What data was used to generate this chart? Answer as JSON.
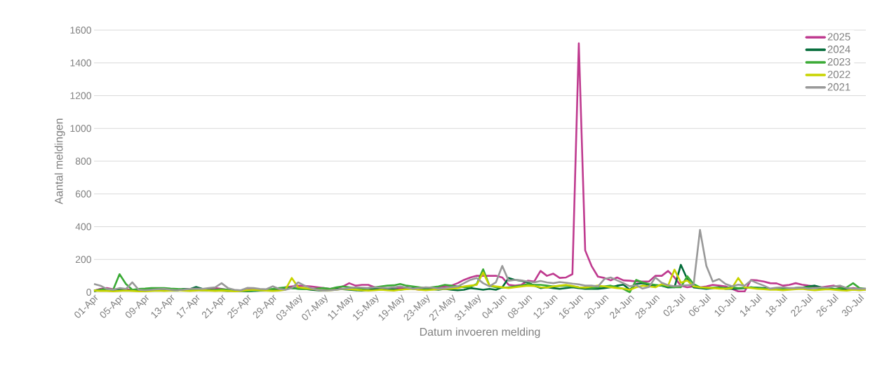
{
  "chart_data": {
    "type": "line",
    "xlabel": "Datum invoeren melding",
    "ylabel": "Aantal meldingen",
    "categories": [
      "01-Apr",
      null,
      null,
      null,
      "05-Apr",
      null,
      null,
      null,
      "09-Apr",
      null,
      null,
      null,
      "13-Apr",
      null,
      null,
      null,
      "17-Apr",
      null,
      null,
      null,
      "21-Apr",
      null,
      null,
      null,
      "25-Apr",
      null,
      null,
      null,
      "29-Apr",
      null,
      null,
      null,
      "03-May",
      null,
      null,
      null,
      "07-May",
      null,
      null,
      null,
      "11-May",
      null,
      null,
      null,
      "15-May",
      null,
      null,
      null,
      "19-May",
      null,
      null,
      null,
      "23-May",
      null,
      null,
      null,
      "27-May",
      null,
      null,
      null,
      "31-May",
      null,
      null,
      null,
      "04-Jun",
      null,
      null,
      null,
      "08-Jun",
      null,
      null,
      null,
      "12-Jun",
      null,
      null,
      null,
      "16-Jun",
      null,
      null,
      null,
      "20-Jun",
      null,
      null,
      null,
      "24-Jun",
      null,
      null,
      null,
      "28-Jun",
      null,
      null,
      null,
      "02-Jul",
      null,
      null,
      null,
      "06-Jul",
      null,
      null,
      null,
      "10-Jul",
      null,
      null,
      null,
      "14-Jul",
      null,
      null,
      null,
      "18-Jul",
      null,
      null,
      null,
      "22-Jul",
      null,
      null,
      null,
      "26-Jul",
      null,
      null,
      null,
      "30-Jul",
      null
    ],
    "series": [
      {
        "name": "2025",
        "color": "#bf3a8f",
        "values": [
          10,
          20,
          25,
          18,
          15,
          20,
          12,
          10,
          15,
          18,
          15,
          12,
          10,
          15,
          18,
          20,
          15,
          12,
          18,
          25,
          20,
          15,
          12,
          10,
          15,
          18,
          15,
          12,
          15,
          20,
          30,
          35,
          40,
          38,
          35,
          30,
          25,
          20,
          25,
          35,
          55,
          40,
          45,
          45,
          30,
          25,
          20,
          30,
          25,
          30,
          20,
          15,
          25,
          20,
          30,
          35,
          40,
          55,
          75,
          90,
          100,
          100,
          100,
          100,
          90,
          45,
          40,
          45,
          70,
          65,
          130,
          100,
          113,
          87,
          90,
          110,
          1520,
          255,
          160,
          95,
          87,
          72,
          90,
          72,
          70,
          65,
          65,
          65,
          100,
          100,
          130,
          90,
          40,
          30,
          35,
          30,
          35,
          45,
          40,
          35,
          20,
          5,
          5,
          75,
          72,
          65,
          55,
          54,
          40,
          45,
          55,
          46,
          40,
          35,
          30,
          35,
          40,
          30,
          20,
          25,
          20,
          15
        ]
      },
      {
        "name": "2024",
        "color": "#006a37",
        "values": [
          5,
          15,
          20,
          10,
          15,
          10,
          12,
          15,
          18,
          20,
          18,
          15,
          12,
          10,
          20,
          18,
          32,
          20,
          15,
          12,
          10,
          8,
          10,
          null,
          5,
          8,
          10,
          12,
          15,
          18,
          20,
          25,
          22,
          20,
          15,
          12,
          10,
          15,
          20,
          18,
          15,
          12,
          10,
          15,
          20,
          25,
          20,
          18,
          15,
          20,
          25,
          20,
          15,
          18,
          15,
          20,
          15,
          12,
          15,
          25,
          20,
          15,
          20,
          15,
          30,
          87,
          75,
          70,
          60,
          40,
          25,
          30,
          25,
          20,
          25,
          30,
          25,
          20,
          22,
          20,
          25,
          30,
          40,
          46,
          15,
          50,
          55,
          45,
          40,
          40,
          29,
          30,
          167,
          80,
          29,
          25,
          20,
          25,
          30,
          20,
          20,
          22,
          25,
          30,
          28,
          25,
          20,
          18,
          15,
          20,
          25,
          28,
          35,
          40,
          30,
          25,
          20,
          15,
          18,
          20,
          15,
          null
        ]
      },
      {
        "name": "2023",
        "color": "#3aaa35",
        "values": [
          10,
          15,
          20,
          15,
          110,
          50,
          15,
          20,
          22,
          25,
          25,
          25,
          22,
          20,
          18,
          15,
          15,
          12,
          10,
          15,
          18,
          15,
          12,
          10,
          8,
          10,
          12,
          15,
          20,
          25,
          30,
          25,
          20,
          18,
          20,
          22,
          25,
          20,
          30,
          35,
          30,
          25,
          20,
          25,
          30,
          35,
          40,
          42,
          50,
          40,
          35,
          30,
          25,
          30,
          35,
          45,
          40,
          35,
          30,
          32,
          50,
          140,
          40,
          30,
          28,
          30,
          35,
          40,
          50,
          45,
          45,
          40,
          35,
          38,
          40,
          35,
          30,
          28,
          25,
          30,
          35,
          40,
          30,
          20,
          0,
          75,
          60,
          50,
          45,
          40,
          35,
          30,
          30,
          98,
          50,
          30,
          25,
          28,
          30,
          25,
          30,
          25,
          28,
          30,
          25,
          22,
          20,
          18,
          20,
          22,
          25,
          28,
          30,
          25,
          22,
          20,
          18,
          25,
          30,
          55,
          25,
          20
        ]
      },
      {
        "name": "2022",
        "color": "#c8d400",
        "values": [
          10,
          8,
          8,
          5,
          8,
          10,
          8,
          5,
          6,
          8,
          10,
          8,
          10,
          12,
          10,
          8,
          10,
          12,
          10,
          8,
          10,
          8,
          5,
          8,
          12,
          15,
          12,
          10,
          8,
          10,
          15,
          87,
          30,
          25,
          20,
          15,
          10,
          12,
          15,
          20,
          18,
          15,
          12,
          10,
          12,
          15,
          12,
          10,
          15,
          18,
          20,
          15,
          12,
          15,
          18,
          20,
          22,
          25,
          35,
          40,
          45,
          120,
          40,
          35,
          30,
          25,
          30,
          35,
          40,
          38,
          30,
          28,
          35,
          40,
          45,
          38,
          30,
          28,
          35,
          40,
          35,
          30,
          25,
          22,
          15,
          30,
          40,
          35,
          30,
          50,
          40,
          138,
          58,
          72,
          35,
          30,
          28,
          25,
          22,
          20,
          25,
          87,
          30,
          25,
          20,
          18,
          15,
          15,
          12,
          15,
          18,
          20,
          15,
          12,
          15,
          18,
          15,
          12,
          10,
          15,
          12,
          15
        ]
      },
      {
        "name": "2021",
        "color": "#999999",
        "values": [
          50,
          40,
          20,
          15,
          25,
          20,
          60,
          15,
          12,
          15,
          18,
          20,
          15,
          12,
          15,
          20,
          22,
          20,
          25,
          30,
          55,
          25,
          15,
          12,
          26,
          25,
          20,
          18,
          36,
          20,
          15,
          25,
          60,
          40,
          25,
          15,
          10,
          12,
          15,
          20,
          25,
          30,
          28,
          25,
          30,
          28,
          25,
          30,
          35,
          28,
          22,
          25,
          30,
          28,
          22,
          25,
          30,
          35,
          55,
          75,
          87,
          55,
          36,
          60,
          160,
          70,
          75,
          72,
          65,
          60,
          68,
          60,
          55,
          62,
          58,
          52,
          48,
          40,
          40,
          35,
          80,
          90,
          72,
          55,
          36,
          43,
          22,
          32,
          90,
          58,
          43,
          36,
          40,
          43,
          46,
          380,
          160,
          65,
          80,
          50,
          36,
          46,
          40,
          72,
          55,
          40,
          22,
          28,
          30,
          25,
          25,
          28,
          22,
          25,
          30,
          28,
          35,
          40,
          25,
          22,
          20,
          22
        ]
      }
    ],
    "ylim": [
      0,
      1600
    ],
    "yticks": [
      0,
      200,
      400,
      600,
      800,
      1000,
      1200,
      1400,
      1600
    ],
    "grid": "y",
    "legend": "top right"
  }
}
